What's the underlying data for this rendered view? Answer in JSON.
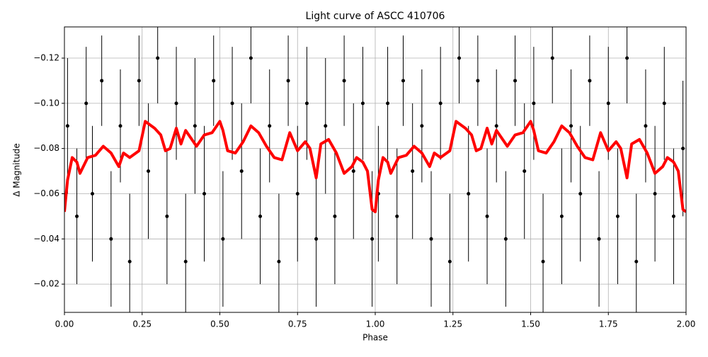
{
  "chart_data": {
    "type": "errorbar_line",
    "title": "Light curve of ASCC 410706",
    "x_label": "Phase",
    "y_label": "Δ Magnitude",
    "xlim": [
      0,
      2
    ],
    "xticks": [
      {
        "value": 0,
        "label": "0.00"
      },
      {
        "value": 0.25,
        "label": "0.25"
      },
      {
        "value": 0.5,
        "label": "0.50"
      },
      {
        "value": 0.75,
        "label": "0.75"
      },
      {
        "value": 1,
        "label": "1.00"
      },
      {
        "value": 1.25,
        "label": "1.25"
      },
      {
        "value": 1.5,
        "label": "1.50"
      },
      {
        "value": 1.75,
        "label": "1.75"
      },
      {
        "value": 2,
        "label": "2.00"
      }
    ],
    "ylim": [
      -0.0075,
      -0.1338
    ],
    "yticks": [
      {
        "value": -0.12,
        "label": "−0.12"
      },
      {
        "value": -0.1,
        "label": "−0.10"
      },
      {
        "value": -0.08,
        "label": "−0.08"
      },
      {
        "value": -0.06,
        "label": "−0.06"
      },
      {
        "value": -0.04,
        "label": "−0.04"
      },
      {
        "value": -0.02,
        "label": "−0.02"
      }
    ],
    "grid": true,
    "points": {
      "color": "#000000",
      "x": [
        0.01,
        0.04,
        0.07,
        0.09,
        0.12,
        0.15,
        0.18,
        0.21,
        0.24,
        0.27,
        0.3,
        0.33,
        0.36,
        0.39,
        0.42,
        0.45,
        0.48,
        0.51,
        0.54,
        0.57,
        0.6,
        0.63,
        0.66,
        0.69,
        0.72,
        0.75,
        0.78,
        0.81,
        0.84,
        0.87,
        0.9,
        0.93,
        0.96,
        0.99,
        1.01,
        1.04,
        1.07,
        1.09,
        1.12,
        1.15,
        1.18,
        1.21,
        1.24,
        1.27,
        1.3,
        1.33,
        1.36,
        1.39,
        1.42,
        1.45,
        1.48,
        1.51,
        1.54,
        1.57,
        1.6,
        1.63,
        1.66,
        1.69,
        1.72,
        1.75,
        1.78,
        1.81,
        1.84,
        1.87,
        1.9,
        1.93,
        1.96,
        1.99
      ],
      "values": [
        -0.09,
        -0.05,
        -0.1,
        -0.06,
        -0.11,
        -0.04,
        -0.09,
        -0.03,
        -0.11,
        -0.07,
        -0.12,
        -0.05,
        -0.1,
        -0.03,
        -0.09,
        -0.06,
        -0.11,
        -0.04,
        -0.1,
        -0.07,
        -0.12,
        -0.05,
        -0.09,
        -0.03,
        -0.11,
        -0.06,
        -0.1,
        -0.04,
        -0.09,
        -0.05,
        -0.11,
        -0.07,
        -0.1,
        -0.04,
        -0.06,
        -0.1,
        -0.05,
        -0.11,
        -0.07,
        -0.09,
        -0.04,
        -0.1,
        -0.03,
        -0.12,
        -0.06,
        -0.11,
        -0.05,
        -0.09,
        -0.04,
        -0.11,
        -0.07,
        -0.1,
        -0.03,
        -0.12,
        -0.05,
        -0.09,
        -0.06,
        -0.11,
        -0.04,
        -0.1,
        -0.05,
        -0.12,
        -0.03,
        -0.09,
        -0.06,
        -0.1,
        -0.05,
        -0.08
      ],
      "errors": [
        0.03,
        0.03,
        0.025,
        0.03,
        0.02,
        0.03,
        0.025,
        0.03,
        0.02,
        0.03,
        0.02,
        0.03,
        0.025,
        0.03,
        0.03,
        0.03,
        0.02,
        0.03,
        0.025,
        0.03,
        0.02,
        0.03,
        0.025,
        0.03,
        0.02,
        0.03,
        0.025,
        0.03,
        0.03,
        0.03,
        0.02,
        0.03,
        0.025,
        0.03,
        0.03,
        0.025,
        0.03,
        0.02,
        0.03,
        0.025,
        0.03,
        0.025,
        0.03,
        0.02,
        0.03,
        0.02,
        0.03,
        0.025,
        0.03,
        0.02,
        0.03,
        0.025,
        0.03,
        0.02,
        0.03,
        0.025,
        0.03,
        0.02,
        0.03,
        0.025,
        0.03,
        0.02,
        0.03,
        0.025,
        0.03,
        0.025,
        0.03,
        0.03
      ]
    },
    "curve": {
      "color": "#ff0000",
      "x": [
        0,
        0.01,
        0.025,
        0.04,
        0.05,
        0.075,
        0.1,
        0.125,
        0.15,
        0.175,
        0.19,
        0.21,
        0.24,
        0.26,
        0.29,
        0.31,
        0.325,
        0.34,
        0.36,
        0.375,
        0.39,
        0.41,
        0.425,
        0.45,
        0.475,
        0.5,
        0.51,
        0.525,
        0.55,
        0.575,
        0.6,
        0.625,
        0.65,
        0.675,
        0.7,
        0.725,
        0.75,
        0.775,
        0.79,
        0.81,
        0.825,
        0.85,
        0.875,
        0.9,
        0.925,
        0.94,
        0.96,
        0.975,
        0.99,
        1.0,
        1.01,
        1.025,
        1.04,
        1.05,
        1.075,
        1.1,
        1.125,
        1.15,
        1.175,
        1.19,
        1.21,
        1.24,
        1.26,
        1.29,
        1.31,
        1.325,
        1.34,
        1.36,
        1.375,
        1.39,
        1.41,
        1.425,
        1.45,
        1.475,
        1.5,
        1.51,
        1.525,
        1.55,
        1.575,
        1.6,
        1.625,
        1.65,
        1.675,
        1.7,
        1.725,
        1.75,
        1.775,
        1.79,
        1.81,
        1.825,
        1.85,
        1.875,
        1.9,
        1.925,
        1.94,
        1.96,
        1.975,
        1.99,
        2.0
      ],
      "values": [
        -0.052,
        -0.066,
        -0.076,
        -0.074,
        -0.069,
        -0.076,
        -0.077,
        -0.081,
        -0.078,
        -0.072,
        -0.078,
        -0.076,
        -0.079,
        -0.092,
        -0.089,
        -0.086,
        -0.079,
        -0.08,
        -0.089,
        -0.082,
        -0.088,
        -0.084,
        -0.081,
        -0.086,
        -0.087,
        -0.092,
        -0.088,
        -0.079,
        -0.078,
        -0.083,
        -0.09,
        -0.087,
        -0.081,
        -0.076,
        -0.075,
        -0.087,
        -0.079,
        -0.083,
        -0.08,
        -0.067,
        -0.082,
        -0.084,
        -0.078,
        -0.069,
        -0.072,
        -0.076,
        -0.074,
        -0.07,
        -0.053,
        -0.052,
        -0.066,
        -0.076,
        -0.074,
        -0.069,
        -0.076,
        -0.077,
        -0.081,
        -0.078,
        -0.072,
        -0.078,
        -0.076,
        -0.079,
        -0.092,
        -0.089,
        -0.086,
        -0.079,
        -0.08,
        -0.089,
        -0.082,
        -0.088,
        -0.084,
        -0.081,
        -0.086,
        -0.087,
        -0.092,
        -0.088,
        -0.079,
        -0.078,
        -0.083,
        -0.09,
        -0.087,
        -0.081,
        -0.076,
        -0.075,
        -0.087,
        -0.079,
        -0.083,
        -0.08,
        -0.067,
        -0.082,
        -0.084,
        -0.078,
        -0.069,
        -0.072,
        -0.076,
        -0.074,
        -0.07,
        -0.053,
        -0.052
      ]
    }
  }
}
